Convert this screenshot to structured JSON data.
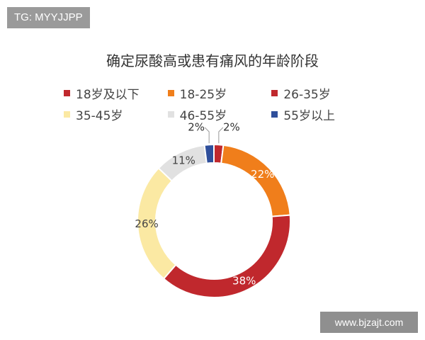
{
  "watermark_tag": "TG: MYYJJPP",
  "site_label": "www.bjzajt.com",
  "chart_data": {
    "type": "pie",
    "donut": true,
    "title": "确定尿酸高或患有痛风的年龄阶段",
    "legend_placement": "top",
    "categories": [
      "18岁及以下",
      "18-25岁",
      "26-35岁",
      "35-45岁",
      "46-55岁",
      "55岁以上"
    ],
    "values": [
      2,
      22,
      38,
      26,
      11,
      2
    ],
    "labels": [
      "2%",
      "22%",
      "38%",
      "26%",
      "11%",
      "2%"
    ],
    "colors": [
      "#c0282d",
      "#f07e1b",
      "#c0282d",
      "#fbe9a3",
      "#e1e1e1",
      "#2f4f9b"
    ]
  }
}
